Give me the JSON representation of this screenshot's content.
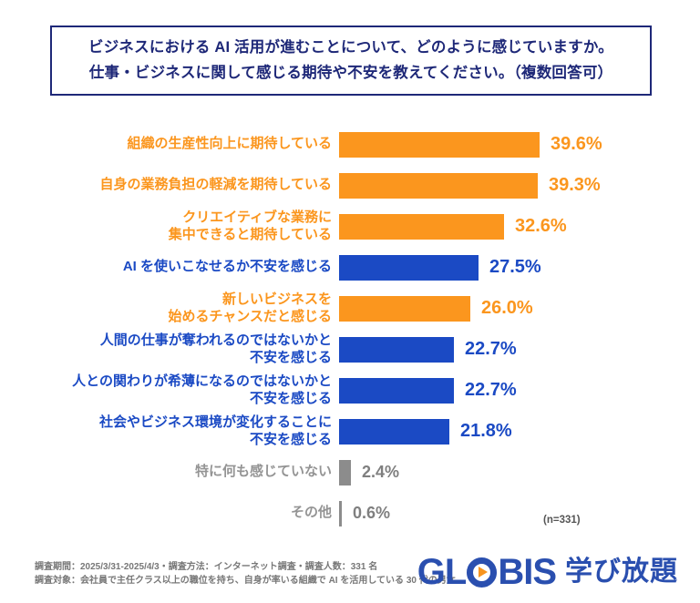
{
  "title": {
    "line1": "ビジネスにおける AI 活用が進むことについて、どのように感じていますか。",
    "line2": "仕事・ビジネスに関して感じる期待や不安を教えてください。（複数回答可）"
  },
  "colors": {
    "orange": "#FB961E",
    "blue": "#1B4AC4",
    "gray": "#8C8C8C",
    "navy": "#1E2878",
    "logo_blue": "#2A4FAF",
    "play_orange": "#F7941E"
  },
  "chart_data": {
    "type": "bar",
    "orientation": "horizontal",
    "unit": "%",
    "xlim": [
      0,
      45
    ],
    "grid": false,
    "legend": false,
    "n_label": "(n=331)",
    "categories": [
      "組織の生産性向上に期待している",
      "自身の業務負担の軽減を期待している",
      "クリエイティブな業務に集中できると期待している",
      "AI を使いこなせるか不安を感じる",
      "新しいビジネスを始めるチャンスだと感じる",
      "人間の仕事が奪われるのではないかと不安を感じる",
      "人との関わりが希薄になるのではないかと不安を感じる",
      "社会やビジネス環境が変化することに不安を感じる",
      "特に何も感じていない",
      "その他"
    ],
    "values": [
      39.6,
      39.3,
      32.6,
      27.5,
      26.0,
      22.7,
      22.7,
      21.8,
      2.4,
      0.6
    ],
    "rows": [
      {
        "label_lines": [
          "組織の生産性向上に期待している"
        ],
        "value": 39.6,
        "value_label": "39.6%",
        "color_key": "orange"
      },
      {
        "label_lines": [
          "自身の業務負担の軽減を期待している"
        ],
        "value": 39.3,
        "value_label": "39.3%",
        "color_key": "orange"
      },
      {
        "label_lines": [
          "クリエイティブな業務に",
          "集中できると期待している"
        ],
        "value": 32.6,
        "value_label": "32.6%",
        "color_key": "orange"
      },
      {
        "label_lines": [
          "AI を使いこなせるか不安を感じる"
        ],
        "value": 27.5,
        "value_label": "27.5%",
        "color_key": "blue"
      },
      {
        "label_lines": [
          "新しいビジネスを",
          "始めるチャンスだと感じる"
        ],
        "value": 26.0,
        "value_label": "26.0%",
        "color_key": "orange"
      },
      {
        "label_lines": [
          "人間の仕事が奪われるのではないかと",
          "不安を感じる"
        ],
        "value": 22.7,
        "value_label": "22.7%",
        "color_key": "blue"
      },
      {
        "label_lines": [
          "人との関わりが希薄になるのではないかと",
          "不安を感じる"
        ],
        "value": 22.7,
        "value_label": "22.7%",
        "color_key": "blue"
      },
      {
        "label_lines": [
          "社会やビジネス環境が変化することに",
          "不安を感じる"
        ],
        "value": 21.8,
        "value_label": "21.8%",
        "color_key": "blue"
      },
      {
        "label_lines": [
          "特に何も感じていない"
        ],
        "value": 2.4,
        "value_label": "2.4%",
        "color_key": "gray"
      },
      {
        "label_lines": [
          "その他"
        ],
        "value": 0.6,
        "value_label": "0.6%",
        "color_key": "gray"
      }
    ]
  },
  "footer": {
    "note_line1": "調査期間：2025/3/31-2025/4/3・調査方法：インターネット調査・調査人数：331 名",
    "note_line2": "調査対象：会社員で主任クラス以上の職位を持ち、自身が率いる組織で AI を活用している 30 代の男女",
    "logo": {
      "left": "GL",
      "right": "BIS",
      "suffix": "学び放題"
    }
  }
}
